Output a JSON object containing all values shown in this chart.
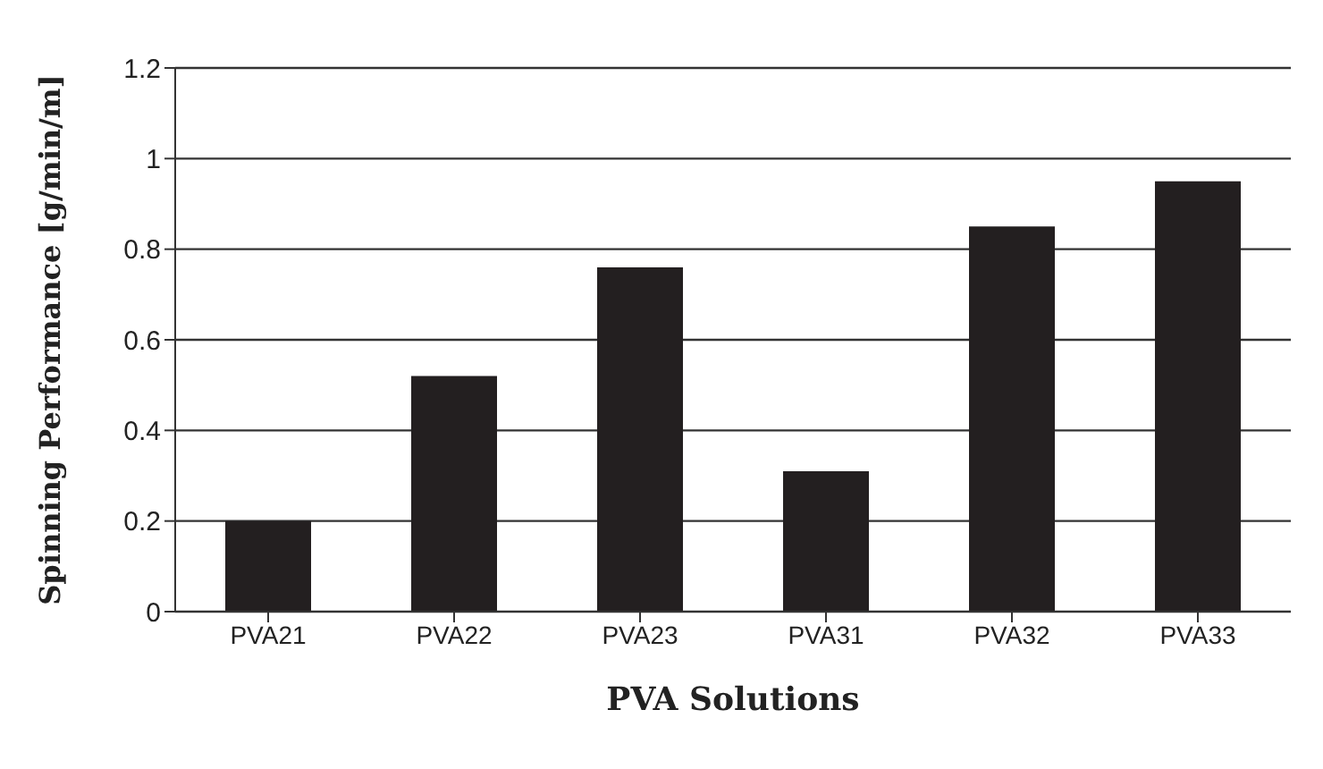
{
  "chart_data": {
    "type": "bar",
    "xlabel": "PVA Solutions",
    "ylabel": "Spinning Performance [g/min/m]",
    "categories": [
      "PVA21",
      "PVA22",
      "PVA23",
      "PVA31",
      "PVA32",
      "PVA33"
    ],
    "values": [
      0.2,
      0.52,
      0.76,
      0.31,
      0.85,
      0.95
    ],
    "color": "#231f20",
    "ylim": [
      0,
      1.2
    ],
    "yticks": [
      0,
      0.2,
      0.4,
      0.6,
      0.8,
      1,
      1.2
    ],
    "grid": "y"
  }
}
